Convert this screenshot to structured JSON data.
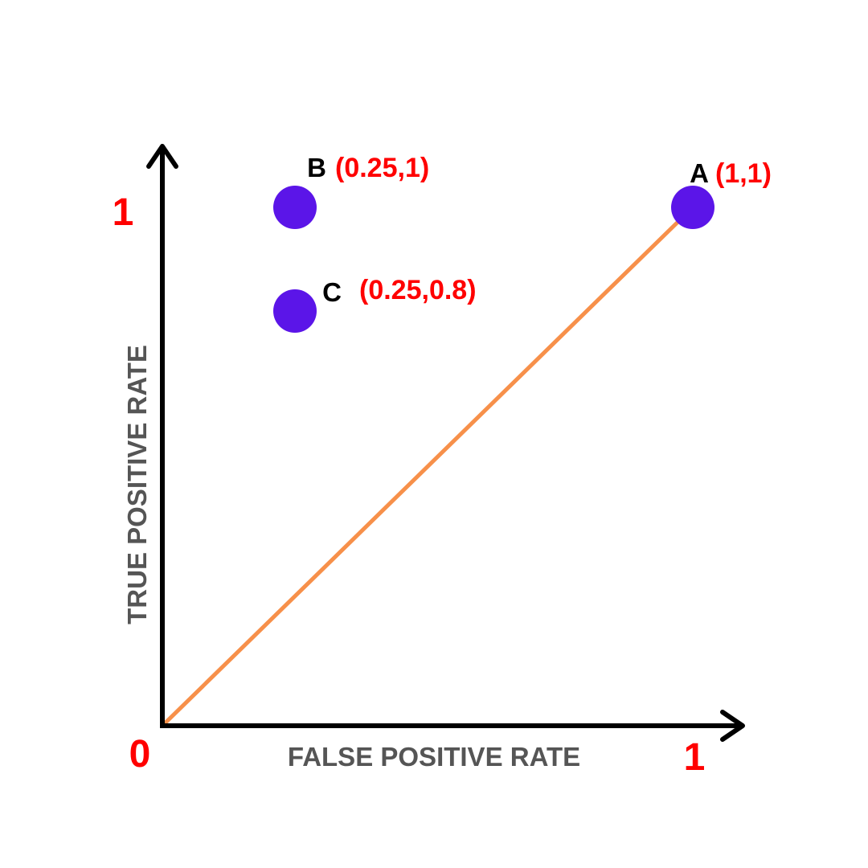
{
  "chart_data": {
    "type": "scatter",
    "title": "",
    "xlabel": "FALSE POSITIVE RATE",
    "ylabel": "TRUE POSITIVE RATE",
    "xlim": [
      0,
      1
    ],
    "ylim": [
      0,
      1
    ],
    "grid": false,
    "ticks": {
      "origin": "0",
      "x_max": "1",
      "y_max": "1"
    },
    "points": [
      {
        "name": "A",
        "x": 1,
        "y": 1,
        "label": "(1,1)"
      },
      {
        "name": "B",
        "x": 0.25,
        "y": 1,
        "label": "(0.25,1)"
      },
      {
        "name": "C",
        "x": 0.25,
        "y": 0.8,
        "label": "(0.25,0.8)"
      }
    ],
    "reference_line": {
      "from": [
        0,
        0
      ],
      "to": [
        1,
        1
      ]
    },
    "colors": {
      "axes": "#000000",
      "axis_title": "#555555",
      "tick_labels": "#ff0000",
      "point_fill": "#5b15e8",
      "point_name": "#000000",
      "point_coord": "#ff0000",
      "reference_line": "#f7904a"
    }
  }
}
